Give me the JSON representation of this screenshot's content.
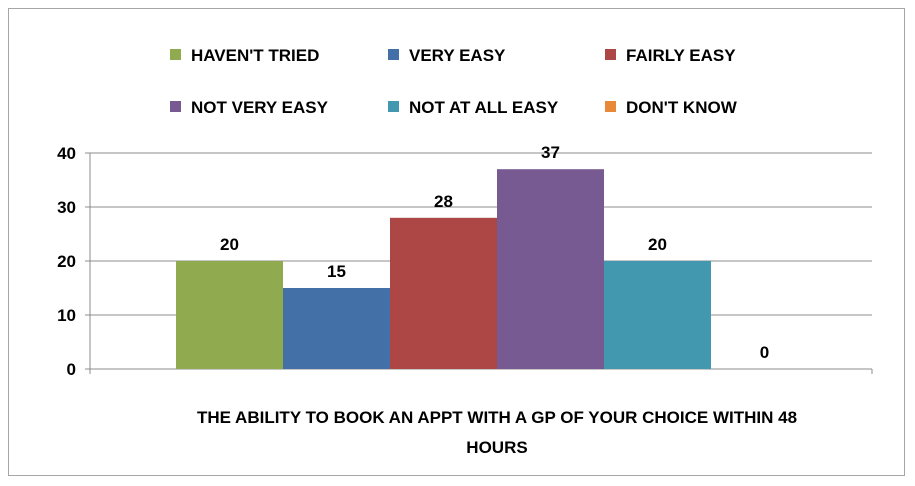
{
  "chart_data": {
    "type": "bar",
    "categories": [
      "THE ABILITY TO BOOK AN APPT WITH A GP OF YOUR CHOICE WITHIN 48 HOURS"
    ],
    "category_label_lines": [
      "THE ABILITY TO BOOK AN APPT WITH A GP OF YOUR CHOICE WITHIN 48",
      "HOURS"
    ],
    "series": [
      {
        "name": "HAVEN'T TRIED",
        "values": [
          20
        ],
        "color": "#8faa4f",
        "label": "20"
      },
      {
        "name": "VERY EASY",
        "values": [
          15
        ],
        "color": "#4470a8",
        "label": "15"
      },
      {
        "name": "FAIRLY EASY",
        "values": [
          28
        ],
        "color": "#ad4745",
        "label": "28"
      },
      {
        "name": "NOT VERY EASY",
        "values": [
          37
        ],
        "color": "#765a91",
        "label": "37"
      },
      {
        "name": "NOT AT ALL EASY",
        "values": [
          20
        ],
        "color": "#4299af",
        "label": "20"
      },
      {
        "name": "DON'T KNOW",
        "values": [
          0
        ],
        "color": "#e8893a",
        "label": "0"
      }
    ],
    "ylim": [
      0,
      40
    ],
    "yticks": [
      0,
      10,
      20,
      30,
      40
    ],
    "ytick_labels": [
      "0",
      "10",
      "20",
      "30",
      "40"
    ],
    "grid": true,
    "legend_position": "top",
    "title": "",
    "xlabel": "",
    "ylabel": ""
  }
}
